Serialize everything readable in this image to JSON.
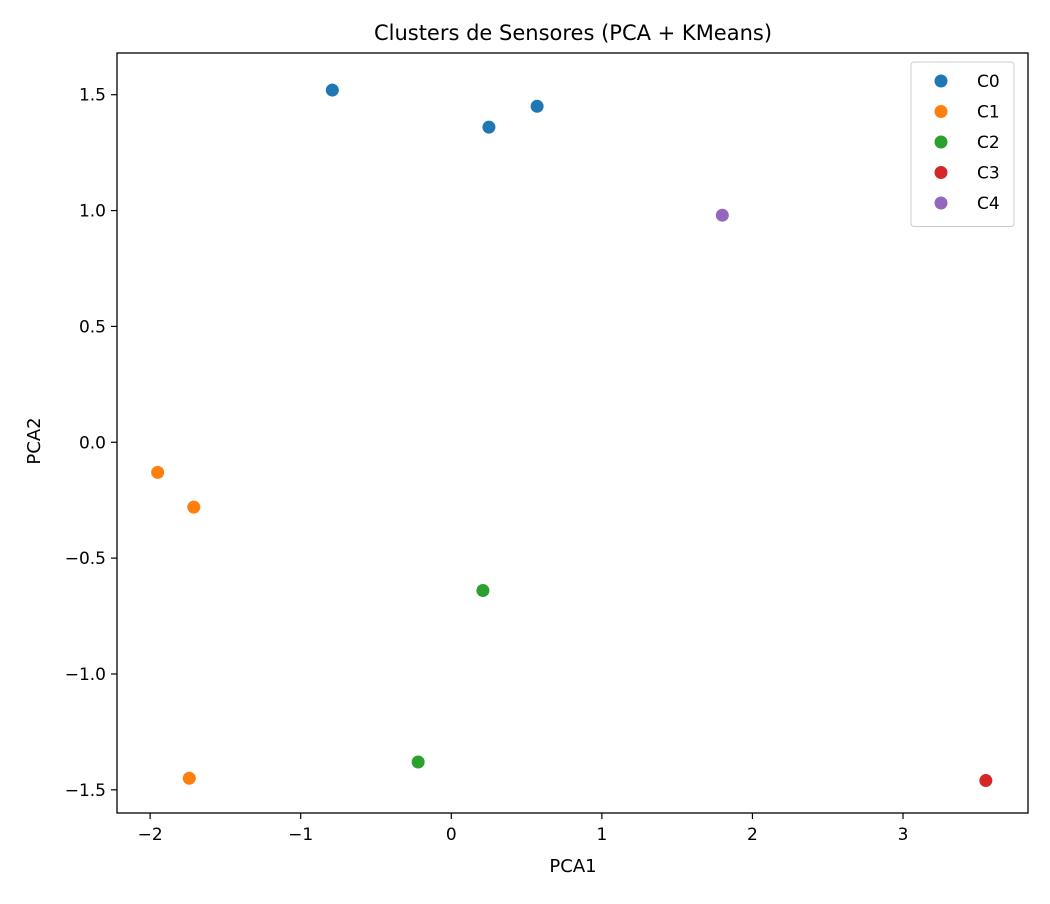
{
  "chart_data": {
    "type": "scatter",
    "title": "Clusters de Sensores (PCA + KMeans)",
    "xlabel": "PCA1",
    "ylabel": "PCA2",
    "xlim": [
      -2.22,
      3.83
    ],
    "ylim": [
      -1.6,
      1.68
    ],
    "xticks": [
      -2,
      -1,
      0,
      1,
      2,
      3
    ],
    "xtick_labels": [
      "−2",
      "−1",
      "0",
      "1",
      "2",
      "3"
    ],
    "yticks": [
      -1.5,
      -1.0,
      -0.5,
      0.0,
      0.5,
      1.0,
      1.5
    ],
    "ytick_labels": [
      "−1.5",
      "−1.0",
      "−0.5",
      "0.0",
      "0.5",
      "1.0",
      "1.5"
    ],
    "grid": false,
    "legend_position": "top-right",
    "series": [
      {
        "name": "C0",
        "color": "#1f77b4",
        "points": [
          [
            -0.79,
            1.52
          ],
          [
            0.25,
            1.36
          ],
          [
            0.57,
            1.45
          ]
        ]
      },
      {
        "name": "C1",
        "color": "#ff7f0e",
        "points": [
          [
            -1.95,
            -0.13
          ],
          [
            -1.71,
            -0.28
          ],
          [
            -1.74,
            -1.45
          ]
        ]
      },
      {
        "name": "C2",
        "color": "#2ca02c",
        "points": [
          [
            0.21,
            -0.64
          ],
          [
            -0.22,
            -1.38
          ]
        ]
      },
      {
        "name": "C3",
        "color": "#d62728",
        "points": [
          [
            3.55,
            -1.46
          ]
        ]
      },
      {
        "name": "C4",
        "color": "#9467bd",
        "points": [
          [
            1.8,
            0.98
          ]
        ]
      }
    ]
  }
}
